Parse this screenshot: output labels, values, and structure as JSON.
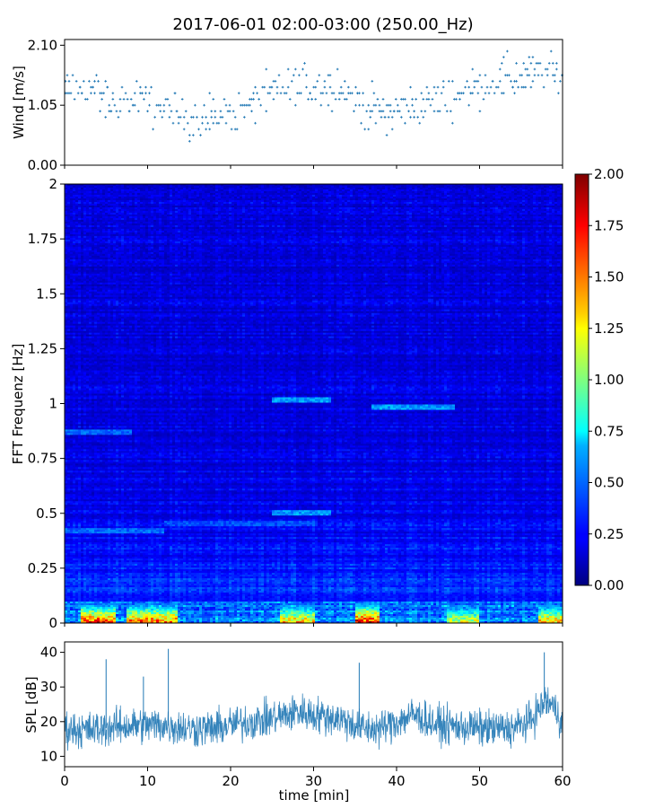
{
  "title": "2017-06-01 02:00-03:00 (250.00_Hz)",
  "chart_data": [
    {
      "id": "wind",
      "type": "scatter",
      "ylabel": "Wind [m/s]",
      "xlim": [
        0,
        60
      ],
      "ylim": [
        0,
        2.2
      ],
      "yticks": [
        "0.00",
        "1.05",
        "2.10"
      ],
      "color": "#1f77b4",
      "trend": {
        "x": [
          0,
          3,
          6,
          9,
          12,
          15,
          18,
          21,
          24,
          27,
          30,
          33,
          36,
          39,
          42,
          45,
          48,
          51,
          54,
          57,
          60
        ],
        "y": [
          1.3,
          1.35,
          1.05,
          1.15,
          0.95,
          0.85,
          0.85,
          0.95,
          1.2,
          1.3,
          1.35,
          1.45,
          1.05,
          0.9,
          1.05,
          1.1,
          1.3,
          1.45,
          1.55,
          1.6,
          1.6
        ]
      }
    },
    {
      "id": "spectrogram",
      "type": "heatmap",
      "ylabel": "FFT Frequenz [Hz]",
      "xlim": [
        0,
        60
      ],
      "ylim": [
        0,
        2
      ],
      "yticks": [
        "0",
        "0.25",
        "0.5",
        "0.75",
        "1",
        "1.25",
        "1.5",
        "1.75",
        "2"
      ],
      "colormap": "jet",
      "colorbar": {
        "min": 0,
        "max": 2,
        "ticks": [
          "0.00",
          "0.25",
          "0.50",
          "0.75",
          "1.00",
          "1.25",
          "1.50",
          "1.75",
          "2.00"
        ]
      },
      "features": [
        {
          "freq": 0.42,
          "x": [
            0,
            12
          ],
          "level": 0.45
        },
        {
          "freq": 0.45,
          "x": [
            12,
            30
          ],
          "level": 0.4
        },
        {
          "freq": 0.5,
          "x": [
            25,
            32
          ],
          "level": 0.55
        },
        {
          "freq": 0.87,
          "x": [
            0,
            8
          ],
          "level": 0.45
        },
        {
          "freq": 1.02,
          "x": [
            25,
            32
          ],
          "level": 0.55
        },
        {
          "freq": 0.98,
          "x": [
            37,
            47
          ],
          "level": 0.55
        }
      ],
      "low_freq_hot_segments": [
        {
          "x": [
            2,
            6
          ],
          "level": 1.8
        },
        {
          "x": [
            7.5,
            13.5
          ],
          "level": 1.7
        },
        {
          "x": [
            35,
            38
          ],
          "level": 1.9
        },
        {
          "x": [
            26,
            30
          ],
          "level": 1.5
        },
        {
          "x": [
            46,
            50
          ],
          "level": 1.3
        },
        {
          "x": [
            57,
            60
          ],
          "level": 1.5
        }
      ]
    },
    {
      "id": "spl",
      "type": "line",
      "xlabel": "time [min]",
      "ylabel": "SPL [dB]",
      "xlim": [
        0,
        60
      ],
      "ylim": [
        7,
        43
      ],
      "xticks": [
        "0",
        "10",
        "20",
        "30",
        "40",
        "50",
        "60"
      ],
      "yticks": [
        "10",
        "20",
        "30",
        "40"
      ],
      "color": "#1f77b4",
      "trend": {
        "x": [
          0,
          3,
          6,
          9,
          12,
          15,
          18,
          21,
          24,
          27,
          28,
          30,
          33,
          36,
          38,
          40,
          42,
          45,
          48,
          51,
          54,
          56,
          58,
          59,
          60
        ],
        "y": [
          18,
          17.5,
          18.5,
          19,
          19,
          18,
          18,
          19.5,
          20.5,
          22,
          23,
          22,
          21,
          18,
          18,
          20,
          22,
          19,
          18.5,
          18,
          18,
          20,
          26,
          24,
          20
        ]
      },
      "spikes": [
        {
          "x": 5,
          "y": 38
        },
        {
          "x": 9.5,
          "y": 33
        },
        {
          "x": 12.5,
          "y": 41
        },
        {
          "x": 35.5,
          "y": 37
        },
        {
          "x": 57.8,
          "y": 40
        }
      ]
    }
  ]
}
